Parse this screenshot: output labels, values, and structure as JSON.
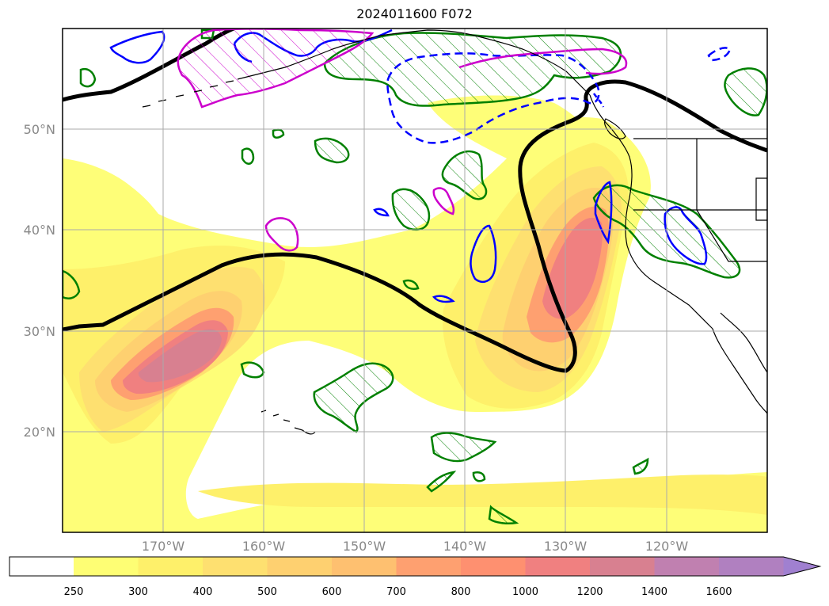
{
  "title": "2024011600 F072",
  "lat_labels": [
    "50°N",
    "40°N",
    "30°N",
    "20°N"
  ],
  "lon_labels": [
    "170°W",
    "160°W",
    "150°W",
    "140°W",
    "130°W",
    "120°W"
  ],
  "colorbar": {
    "ticks": [
      "250",
      "300",
      "400",
      "500",
      "600",
      "700",
      "800",
      "1000",
      "1200",
      "1400",
      "1600"
    ],
    "colors": [
      "#ffffff",
      "#fefe74",
      "#fef06a",
      "#fee070",
      "#fed070",
      "#fec070",
      "#fea070",
      "#fe9070",
      "#f08080",
      "#d88090",
      "#c080b0",
      "#b080c0",
      "#a080d0"
    ]
  },
  "contour_colors": {
    "mslp_line": "#000000",
    "green_hatch": "#008000",
    "blue_line": "#0000ff",
    "magenta_line": "#cc00cc"
  }
}
